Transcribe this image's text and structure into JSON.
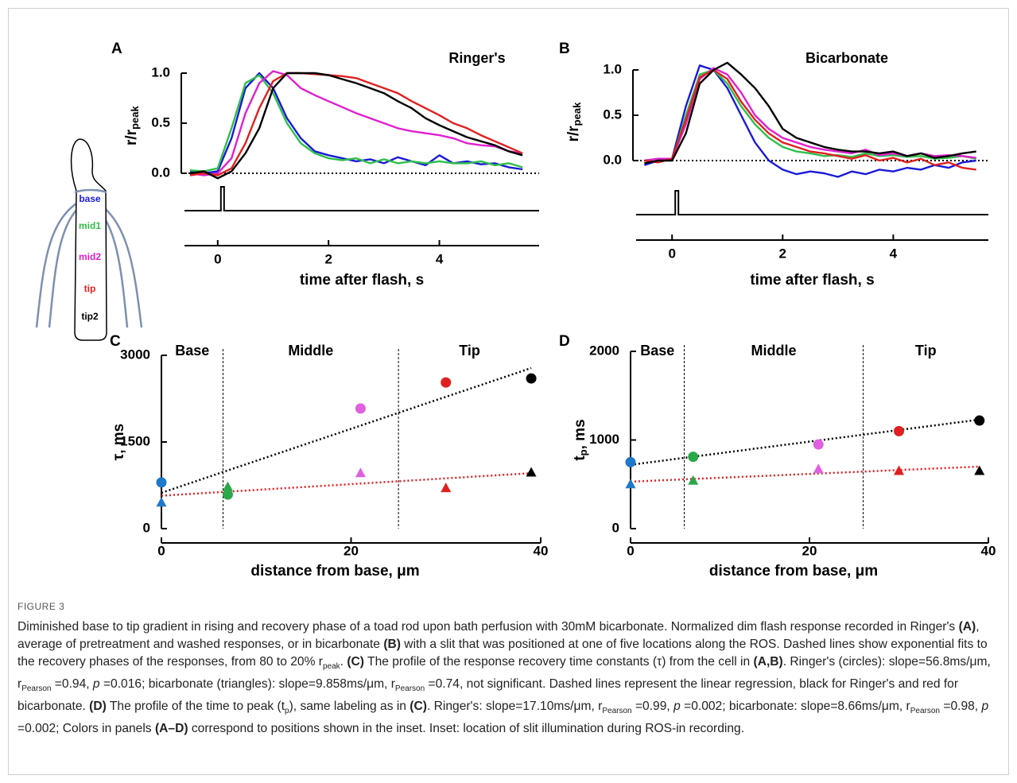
{
  "chart_data": [
    {
      "type": "line",
      "panel": "A",
      "title": "Ringer's",
      "x_label": "time after flash, s",
      "y_label": [
        "r/r",
        "peak"
      ],
      "xlim": [
        -0.6,
        5.8
      ],
      "xticks": [
        0,
        2,
        4
      ],
      "ylim": [
        -0.1,
        1.05
      ],
      "yticks": [
        {
          "value": 0,
          "label": "0.0"
        },
        {
          "value": 0.5,
          "label": "0.5"
        },
        {
          "value": 1,
          "label": "1.0"
        }
      ],
      "zero_line": true,
      "x": [
        -0.5,
        -0.25,
        0,
        0.25,
        0.5,
        0.75,
        1,
        1.25,
        1.5,
        1.75,
        2,
        2.25,
        2.5,
        2.75,
        3,
        3.25,
        3.5,
        3.75,
        4,
        4.25,
        4.5,
        4.75,
        5,
        5.25,
        5.5
      ],
      "series": [
        {
          "color": "#1a1ad8",
          "values": [
            0.02,
            0.0,
            0.02,
            0.35,
            0.85,
            1.0,
            0.85,
            0.55,
            0.35,
            0.22,
            0.18,
            0.15,
            0.12,
            0.14,
            0.1,
            0.16,
            0.12,
            0.08,
            0.18,
            0.1,
            0.12,
            0.09,
            0.1,
            0.06,
            0.04
          ]
        },
        {
          "color": "#2fbf4a",
          "values": [
            0.03,
            0.02,
            0.05,
            0.45,
            0.9,
            0.98,
            0.8,
            0.5,
            0.3,
            0.2,
            0.15,
            0.13,
            0.15,
            0.1,
            0.14,
            0.1,
            0.12,
            0.1,
            0.12,
            0.1,
            0.1,
            0.12,
            0.08,
            0.1,
            0.06
          ]
        },
        {
          "color": "#e020d0",
          "values": [
            0.0,
            -0.02,
            0.0,
            0.15,
            0.6,
            0.9,
            1.02,
            0.98,
            0.85,
            0.78,
            0.72,
            0.66,
            0.6,
            0.55,
            0.5,
            0.45,
            0.42,
            0.4,
            0.38,
            0.35,
            0.3,
            0.28,
            0.27,
            0.22,
            0.2
          ]
        },
        {
          "color": "#e02020",
          "values": [
            -0.02,
            0.0,
            -0.02,
            0.05,
            0.3,
            0.65,
            0.92,
            1.0,
            1.0,
            0.99,
            0.98,
            0.97,
            0.95,
            0.9,
            0.85,
            0.8,
            0.72,
            0.65,
            0.58,
            0.5,
            0.45,
            0.38,
            0.32,
            0.26,
            0.2
          ]
        },
        {
          "color": "#000000",
          "values": [
            0.0,
            0.02,
            -0.05,
            0.02,
            0.2,
            0.45,
            0.85,
            1.0,
            1.0,
            1.0,
            0.98,
            0.94,
            0.9,
            0.85,
            0.8,
            0.72,
            0.65,
            0.55,
            0.48,
            0.42,
            0.36,
            0.32,
            0.28,
            0.22,
            0.18
          ]
        }
      ]
    },
    {
      "type": "line",
      "panel": "B",
      "title": "Bicarbonate",
      "x_label": "time after flash, s",
      "y_label": [
        "r/r",
        "peak"
      ],
      "xlim": [
        -0.65,
        5.72
      ],
      "xticks": [
        0,
        2,
        4
      ],
      "ylim": [
        -0.2,
        1.05
      ],
      "yticks": [
        {
          "value": 0,
          "label": "0.0"
        },
        {
          "value": 0.5,
          "label": "0.5"
        },
        {
          "value": 1,
          "label": "1.0"
        }
      ],
      "zero_line": true,
      "x": [
        -0.5,
        -0.25,
        0,
        0.25,
        0.5,
        0.75,
        1,
        1.25,
        1.5,
        1.75,
        2,
        2.25,
        2.5,
        2.75,
        3,
        3.25,
        3.5,
        3.75,
        4,
        4.25,
        4.5,
        4.75,
        5,
        5.25,
        5.5
      ],
      "series": [
        {
          "color": "#1a1ad8",
          "values": [
            -0.05,
            0.0,
            0.02,
            0.6,
            1.05,
            1.0,
            0.8,
            0.5,
            0.2,
            0.0,
            -0.1,
            -0.15,
            -0.12,
            -0.14,
            -0.18,
            -0.12,
            -0.15,
            -0.1,
            -0.12,
            -0.08,
            -0.1,
            -0.05,
            -0.08,
            -0.02,
            0.0
          ]
        },
        {
          "color": "#2fbf4a",
          "values": [
            0.0,
            0.02,
            0.0,
            0.5,
            0.95,
            1.0,
            0.85,
            0.6,
            0.4,
            0.25,
            0.15,
            0.1,
            0.08,
            0.05,
            0.06,
            0.04,
            0.08,
            0.05,
            0.06,
            0.04,
            0.05,
            0.02,
            0.03,
            0.05,
            0.02
          ]
        },
        {
          "color": "#e020d0",
          "values": [
            0.0,
            0.02,
            0.02,
            0.4,
            0.9,
            1.02,
            0.95,
            0.75,
            0.5,
            0.35,
            0.25,
            0.2,
            0.15,
            0.12,
            0.1,
            0.08,
            0.12,
            0.06,
            0.08,
            0.05,
            0.08,
            0.05,
            0.06,
            0.05,
            0.03
          ]
        },
        {
          "color": "#e02020",
          "values": [
            0.0,
            -0.02,
            0.02,
            0.45,
            0.92,
            1.0,
            0.9,
            0.65,
            0.45,
            0.3,
            0.2,
            0.15,
            0.1,
            0.08,
            0.05,
            0.02,
            0.06,
            0.0,
            0.03,
            -0.02,
            0.02,
            -0.05,
            -0.02,
            -0.08,
            -0.1
          ]
        },
        {
          "color": "#000000",
          "values": [
            -0.03,
            0.0,
            0.0,
            0.3,
            0.85,
            1.0,
            1.08,
            0.95,
            0.8,
            0.6,
            0.35,
            0.25,
            0.2,
            0.15,
            0.12,
            0.1,
            0.1,
            0.08,
            0.1,
            0.05,
            0.08,
            0.03,
            0.05,
            0.08,
            0.1
          ]
        }
      ]
    },
    {
      "type": "scatter",
      "panel": "C",
      "x_label": "distance from base, μm",
      "y_label": [
        "τ, ms"
      ],
      "xlim": [
        0,
        40
      ],
      "xticks": [
        0,
        20,
        40
      ],
      "ylim": [
        0,
        3000
      ],
      "yticks": [
        0,
        1500,
        3000
      ],
      "regions": [
        "Base",
        "Middle",
        "Tip"
      ],
      "region_bounds": [
        6.5,
        25
      ],
      "series": [
        {
          "marker": "circle",
          "x": [
            0,
            7,
            21,
            30,
            39
          ],
          "values": [
            800,
            590,
            2080,
            2530,
            2600
          ],
          "colors": [
            "#1f78c8",
            "#2aa84a",
            "#e060e0",
            "#e02020",
            "#000000"
          ]
        },
        {
          "marker": "triangle",
          "x": [
            0,
            7,
            21,
            30,
            39
          ],
          "values": [
            450,
            720,
            960,
            700,
            970
          ],
          "colors": [
            "#1f78c8",
            "#2aa84a",
            "#e060e0",
            "#e02020",
            "#000000"
          ]
        }
      ],
      "fits": [
        {
          "color": "#000000",
          "x": [
            0,
            39
          ],
          "values": [
            620,
            2780
          ]
        },
        {
          "color": "#e02020",
          "x": [
            0,
            39
          ],
          "values": [
            570,
            960
          ]
        }
      ]
    },
    {
      "type": "scatter",
      "panel": "D",
      "x_label": "distance from base, μm",
      "y_label": [
        "t",
        "p",
        ", ms"
      ],
      "xlim": [
        0,
        40
      ],
      "xticks": [
        0,
        20,
        40
      ],
      "ylim": [
        0,
        2000
      ],
      "yticks": [
        0,
        1000,
        2000
      ],
      "regions": [
        "Base",
        "Middle",
        "Tip"
      ],
      "region_bounds": [
        6,
        26
      ],
      "series": [
        {
          "marker": "circle",
          "x": [
            0,
            7,
            21,
            30,
            39
          ],
          "values": [
            750,
            810,
            950,
            1100,
            1220
          ],
          "colors": [
            "#1f78c8",
            "#2aa84a",
            "#e060e0",
            "#e02020",
            "#000000"
          ]
        },
        {
          "marker": "triangle",
          "x": [
            0,
            7,
            21,
            30,
            39
          ],
          "values": [
            500,
            540,
            670,
            650,
            650
          ],
          "colors": [
            "#1f78c8",
            "#2aa84a",
            "#e060e0",
            "#e02020",
            "#000000"
          ]
        }
      ],
      "fits": [
        {
          "color": "#000000",
          "x": [
            0,
            39
          ],
          "values": [
            720,
            1230
          ]
        },
        {
          "color": "#e02020",
          "x": [
            0,
            39
          ],
          "values": [
            530,
            700
          ]
        }
      ]
    }
  ],
  "inset": {
    "labels": [
      "base",
      "mid1",
      "mid2",
      "tip",
      "tip2"
    ]
  },
  "caption": [
    "FIGURE 3",
    "Diminished base to tip gradient in rising and recovery phase of a toad rod upon bath perfusion with 30mM bicarbonate. Normalized dim flash response recorded in Ringer's ",
    "(A)",
    ", average of pretreatment and washed responses, or in bicarbonate ",
    "(B)",
    " with a slit that was positioned at one of five locations along the ROS. Dashed lines show exponential fits to the recovery phases of the responses, from 80 to 20% r",
    "peak",
    ". ",
    "(C)",
    " The profile of the response recovery time constants (τ) from the cell in ",
    "(A,B)",
    ". Ringer's (circles): slope=56.8ms/μm, r",
    "Pearson",
    " =0.94, ",
    "p",
    " =0.016; bicarbonate (triangles): slope=9.858ms/μm, r",
    "Pearson",
    " =0.74, not significant. Dashed lines represent the linear regression, black for Ringer's and red for bicarbonate. ",
    "(D)",
    " The profile of the time to peak (t",
    "p",
    "), same labeling as in ",
    "(C)",
    ". Ringer's: slope=17.10ms/μm, r",
    "Pearson",
    " =0.99, ",
    "p",
    " =0.002; bicarbonate: slope=8.66ms/μm, r",
    "Pearson",
    " =0.98, ",
    "p",
    " =0.002; Colors in panels ",
    "(A–D)",
    " correspond to positions shown in the inset. Inset: location of slit illumination during ROS-in recording."
  ]
}
